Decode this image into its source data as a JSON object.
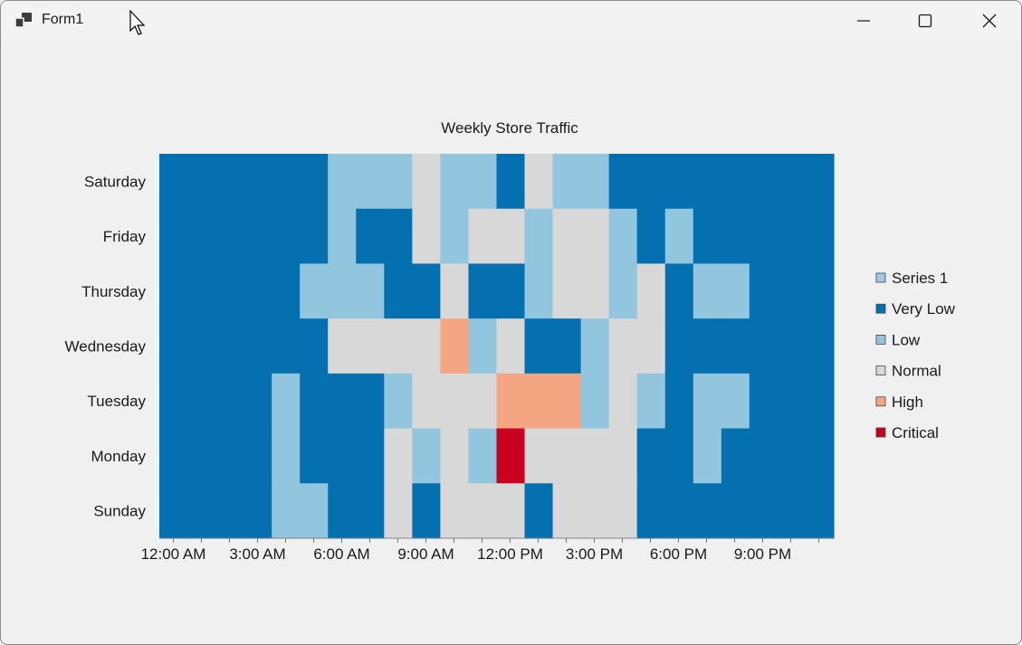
{
  "window": {
    "title": "Form1",
    "icons": {
      "app": "app-form-icon",
      "minimize": "minimize-icon",
      "maximize": "maximize-icon",
      "close": "close-icon",
      "cursor": "mouse-cursor-icon"
    }
  },
  "chart_data": {
    "type": "heatmap",
    "title": "Weekly Store Traffic",
    "x_ticks": [
      "12:00 AM",
      "3:00 AM",
      "6:00 AM",
      "9:00 AM",
      "12:00 PM",
      "3:00 PM",
      "6:00 PM",
      "9:00 PM"
    ],
    "columns_per_day": 24,
    "rows": [
      "Saturday",
      "Friday",
      "Thursday",
      "Wednesday",
      "Tuesday",
      "Monday",
      "Sunday"
    ],
    "level_legend": [
      "Series 1",
      "Very Low",
      "Low",
      "Normal",
      "High",
      "Critical"
    ],
    "level_colors": {
      "Series 1": "#a2c8e8",
      "Very Low": "#0570b0",
      "Low": "#92c5de",
      "Normal": "#d8d8d8",
      "High": "#f4a582",
      "Critical": "#ca0020"
    },
    "cell_levels": [
      [
        "VL",
        "VL",
        "VL",
        "VL",
        "VL",
        "VL",
        "L",
        "L",
        "L",
        "N",
        "L",
        "L",
        "VL",
        "N",
        "L",
        "L",
        "VL",
        "VL",
        "VL",
        "VL",
        "VL",
        "VL",
        "VL",
        "VL"
      ],
      [
        "VL",
        "VL",
        "VL",
        "VL",
        "VL",
        "VL",
        "L",
        "VL",
        "VL",
        "N",
        "L",
        "N",
        "N",
        "L",
        "N",
        "N",
        "L",
        "VL",
        "L",
        "VL",
        "VL",
        "VL",
        "VL",
        "VL"
      ],
      [
        "VL",
        "VL",
        "VL",
        "VL",
        "VL",
        "L",
        "L",
        "L",
        "VL",
        "VL",
        "N",
        "VL",
        "VL",
        "L",
        "N",
        "N",
        "L",
        "N",
        "VL",
        "L",
        "L",
        "VL",
        "VL",
        "VL"
      ],
      [
        "VL",
        "VL",
        "VL",
        "VL",
        "VL",
        "VL",
        "N",
        "N",
        "N",
        "N",
        "H",
        "L",
        "N",
        "VL",
        "VL",
        "L",
        "N",
        "N",
        "VL",
        "VL",
        "VL",
        "VL",
        "VL",
        "VL"
      ],
      [
        "VL",
        "VL",
        "VL",
        "VL",
        "L",
        "VL",
        "VL",
        "VL",
        "L",
        "N",
        "N",
        "N",
        "H",
        "H",
        "H",
        "L",
        "N",
        "L",
        "VL",
        "L",
        "L",
        "VL",
        "VL",
        "VL"
      ],
      [
        "VL",
        "VL",
        "VL",
        "VL",
        "L",
        "VL",
        "VL",
        "VL",
        "N",
        "L",
        "N",
        "L",
        "C",
        "N",
        "N",
        "N",
        "N",
        "VL",
        "VL",
        "L",
        "VL",
        "VL",
        "VL",
        "VL"
      ],
      [
        "VL",
        "VL",
        "VL",
        "VL",
        "L",
        "L",
        "VL",
        "VL",
        "N",
        "VL",
        "N",
        "N",
        "N",
        "VL",
        "N",
        "N",
        "N",
        "VL",
        "VL",
        "VL",
        "VL",
        "VL",
        "VL",
        "VL"
      ]
    ],
    "level_codes": {
      "VL": "Very Low",
      "L": "Low",
      "N": "Normal",
      "H": "High",
      "C": "Critical"
    },
    "legend_position": "right"
  }
}
